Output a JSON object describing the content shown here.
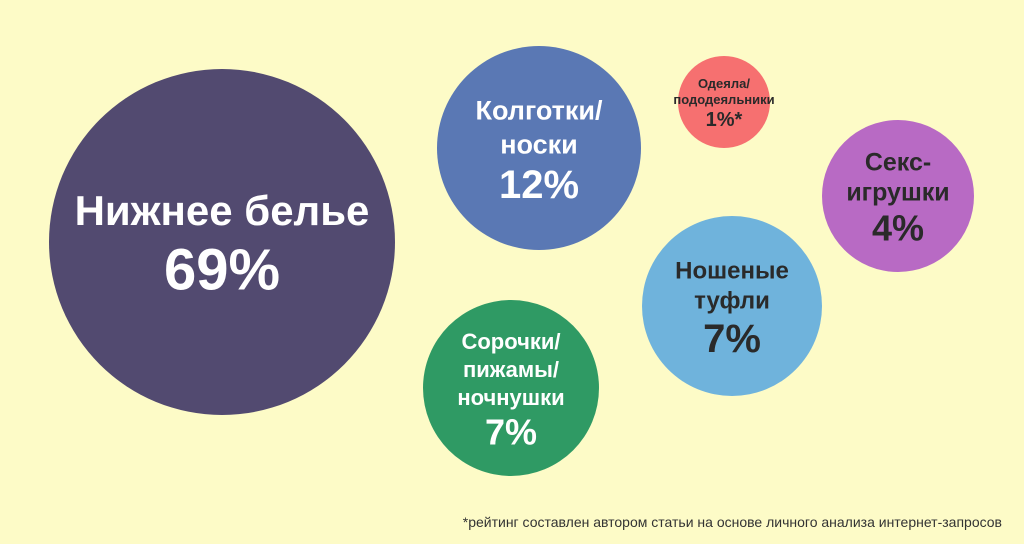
{
  "chart_data": {
    "type": "bubble",
    "series": [
      {
        "label_lines": [
          "Нижнее белье"
        ],
        "value": "69%",
        "color": "#524a70",
        "text_color": "#ffffff"
      },
      {
        "label_lines": [
          "Колготки/",
          "носки"
        ],
        "value": "12%",
        "color": "#5a78b4",
        "text_color": "#ffffff"
      },
      {
        "label_lines": [
          "Одеяла/",
          "пододеяльники"
        ],
        "value": "1%*",
        "color": "#f67070",
        "text_color": "#2a2a2a"
      },
      {
        "label_lines": [
          "Секс-",
          "игрушки"
        ],
        "value": "4%",
        "color": "#b86ac4",
        "text_color": "#2a2a2a"
      },
      {
        "label_lines": [
          "Ношеные",
          "туфли"
        ],
        "value": "7%",
        "color": "#6fb3dc",
        "text_color": "#2a2a2a"
      },
      {
        "label_lines": [
          "Сорочки/",
          "пижамы/",
          "ночнушки"
        ],
        "value": "7%",
        "color": "#2f9a64",
        "text_color": "#ffffff"
      }
    ]
  },
  "footnote": "*рейтинг составлен автором статьи на основе личного анализа интернет-запросов"
}
